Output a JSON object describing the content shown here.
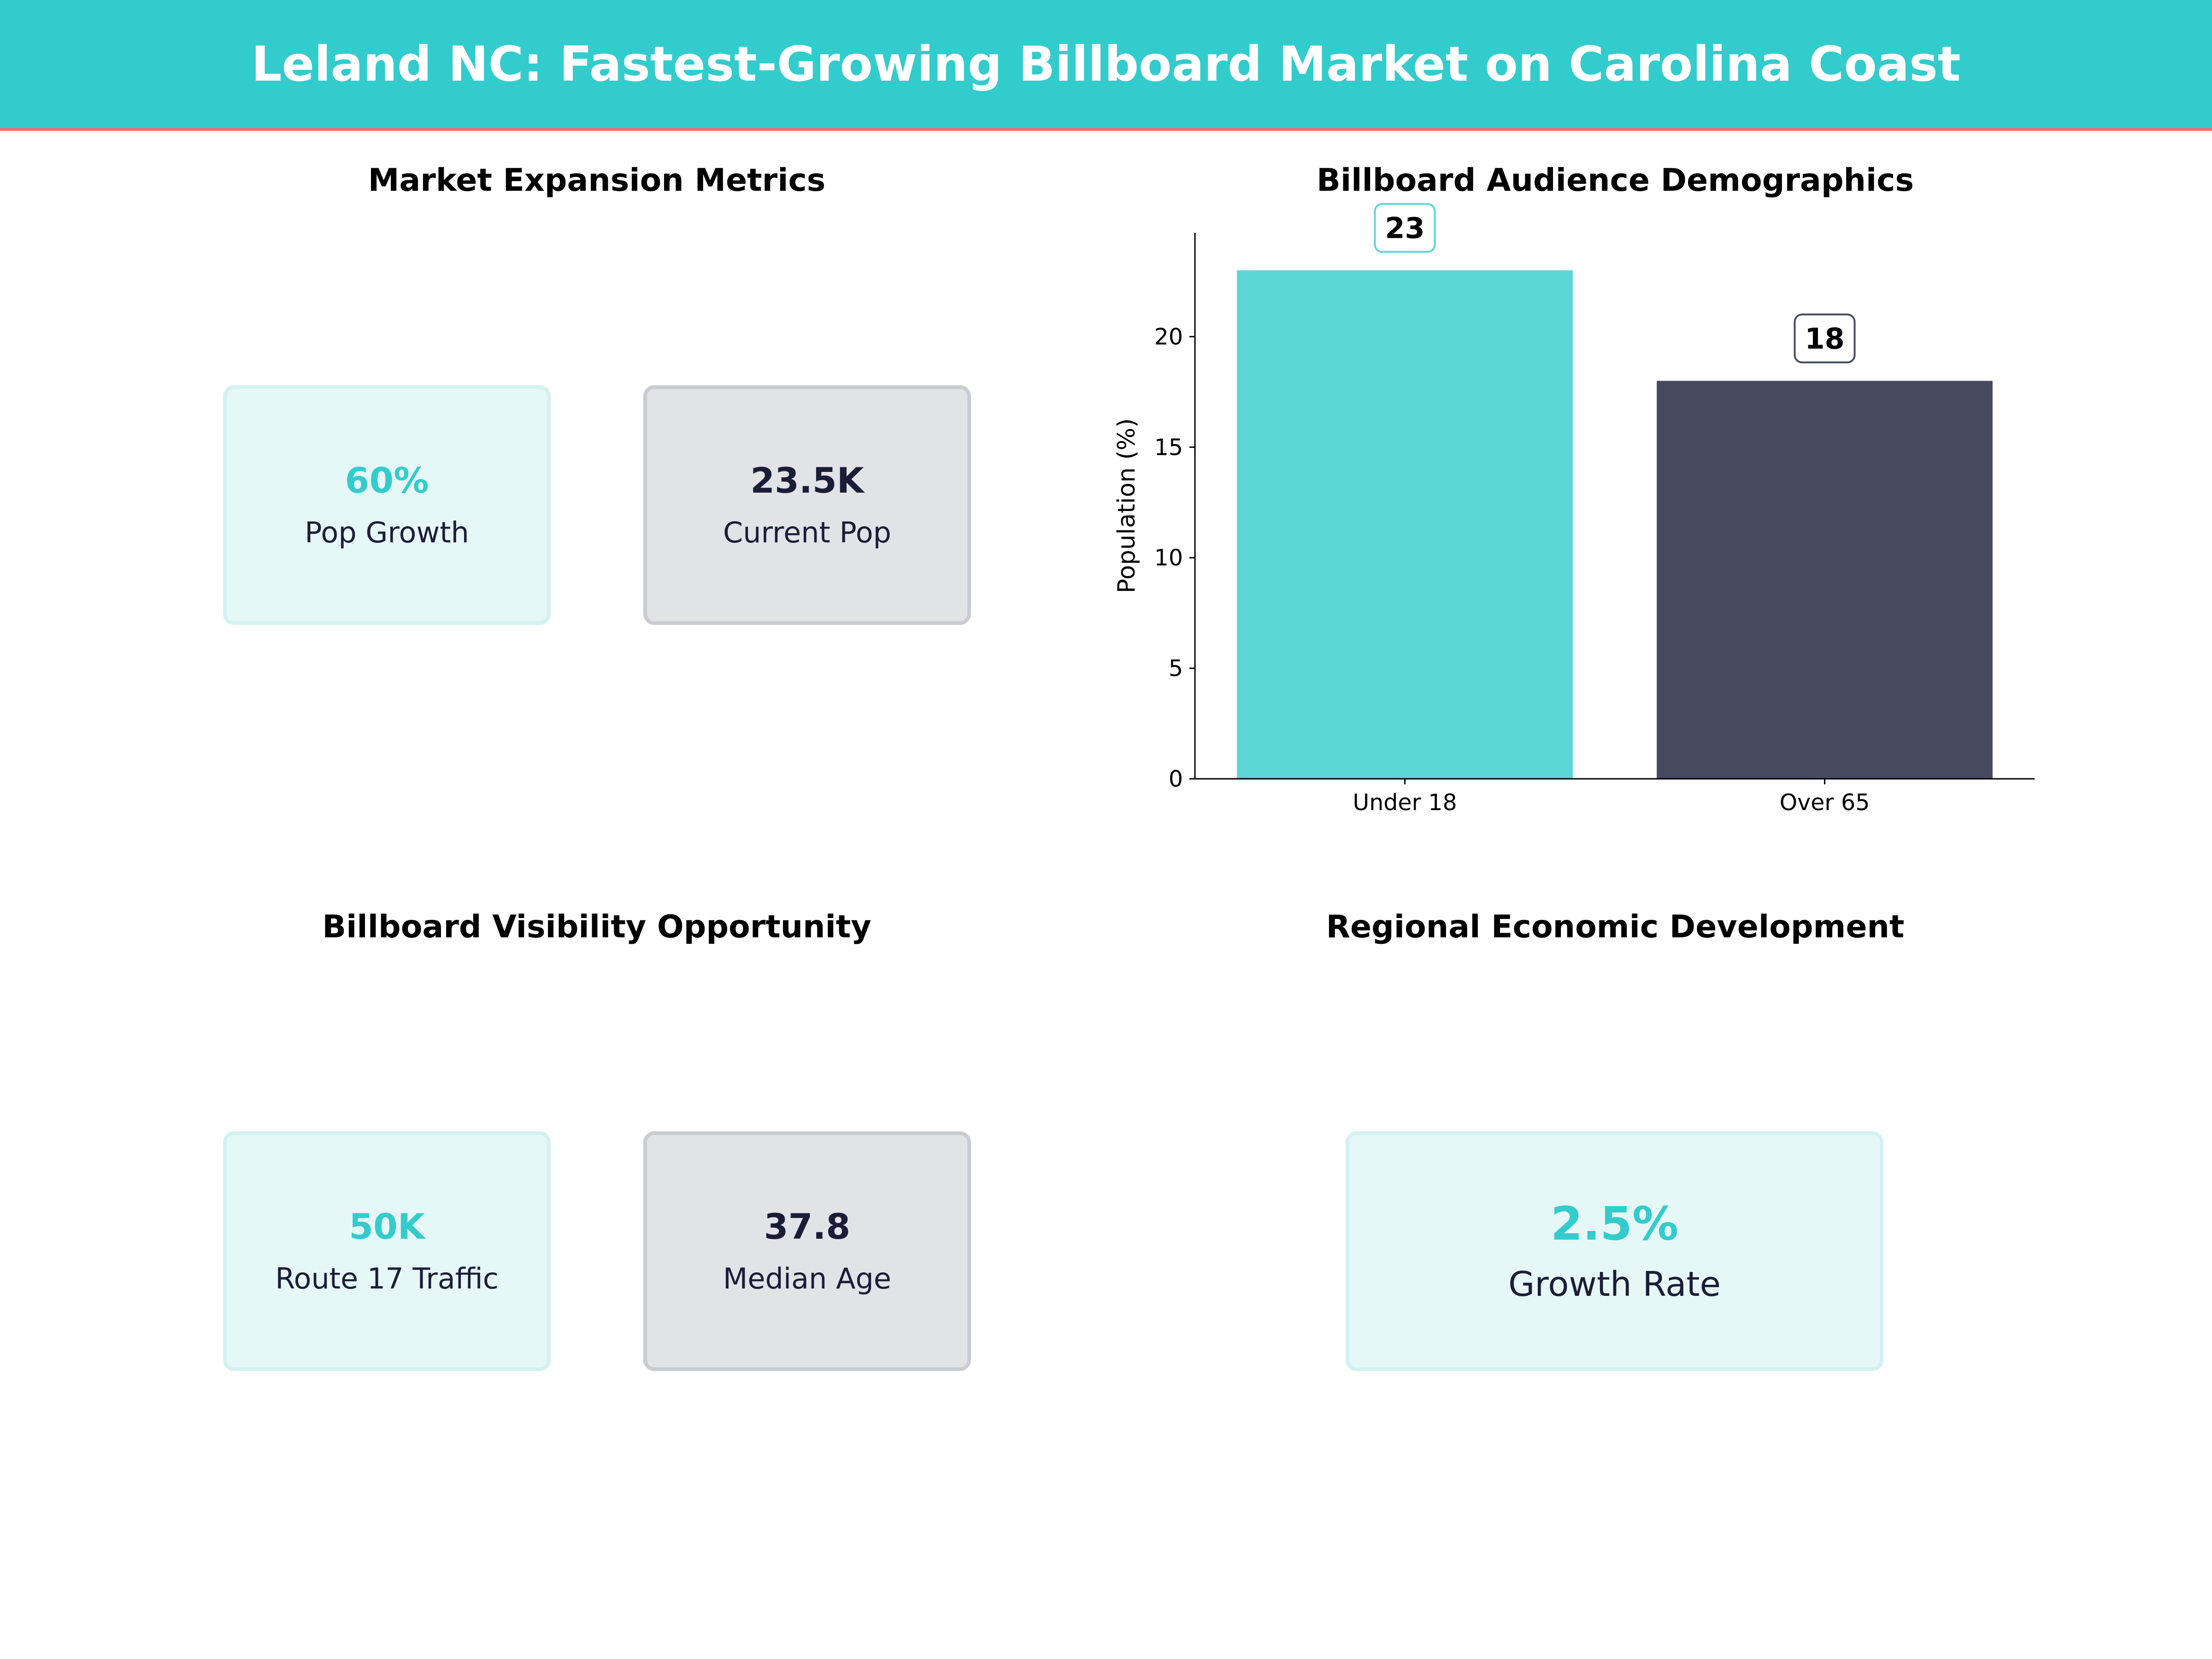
{
  "header": {
    "title": "Leland NC: Fastest-Growing Billboard Market on Carolina Coast"
  },
  "colors": {
    "header_bg": "#33CCCC",
    "header_line": "#FF6B6B",
    "teal": "#5CD6D4",
    "navy": "#454A60"
  },
  "panels": {
    "market": {
      "title": "Market Expansion Metrics",
      "cards": [
        {
          "value": "60%",
          "label": "Pop Growth"
        },
        {
          "value": "23.5K",
          "label": "Current Pop"
        }
      ]
    },
    "visibility": {
      "title": "Billboard Visibility Opportunity",
      "cards": [
        {
          "value": "50K",
          "label": "Route 17 Traffic"
        },
        {
          "value": "37.8",
          "label": "Median Age"
        }
      ]
    },
    "economic": {
      "title": "Regional Economic Development",
      "cards": [
        {
          "value": "2.5%",
          "label": "Growth Rate"
        }
      ]
    }
  },
  "chart_data": {
    "type": "bar",
    "title": "Billboard Audience Demographics",
    "categories": [
      "Under 18",
      "Over 65"
    ],
    "values": [
      23,
      18
    ],
    "data_labels": [
      "23",
      "18"
    ],
    "colors": [
      "#5CD6D4",
      "#454A60"
    ],
    "xlabel": "",
    "ylabel": "Population (%)",
    "ylim": [
      0,
      24.7
    ],
    "yticks": [
      0,
      5,
      10,
      15,
      20
    ],
    "grid": false
  }
}
